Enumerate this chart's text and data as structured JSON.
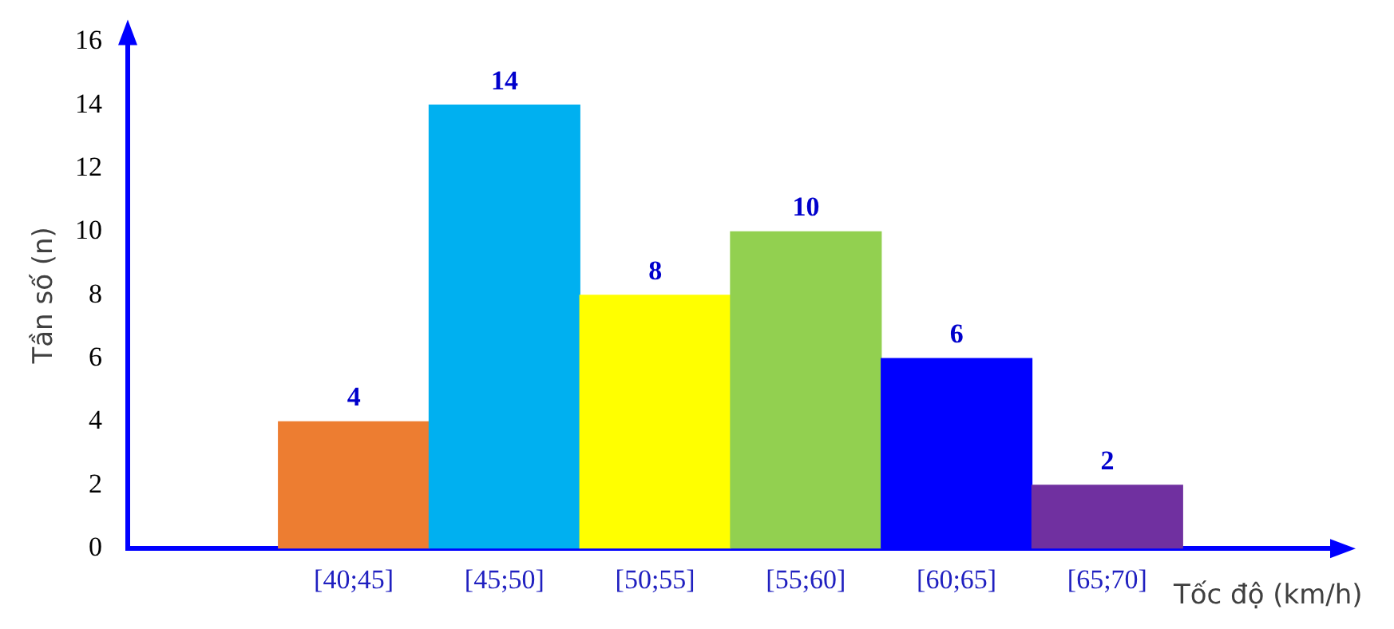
{
  "chart_data": {
    "type": "bar",
    "xlabel": "Tốc độ (km/h)",
    "ylabel": "Tần số (n)",
    "categories": [
      null,
      "[40;45]",
      "[45;50]",
      "[50;55]",
      "[55;60]",
      "[60;65]",
      "[65;70]",
      null
    ],
    "values": [
      null,
      4,
      14,
      8,
      10,
      6,
      2,
      null
    ],
    "colors": [
      "#ed7d31",
      "#ed7d31",
      "#00b0f0",
      "#ffff00",
      "#92d050",
      "#0000ff",
      "#7030a0",
      "#7030a0"
    ],
    "ylim": [
      0,
      16
    ],
    "yticks": [
      0,
      2,
      4,
      6,
      8,
      10,
      12,
      14,
      16
    ],
    "grid": false,
    "legend": false,
    "data_labels": true
  }
}
